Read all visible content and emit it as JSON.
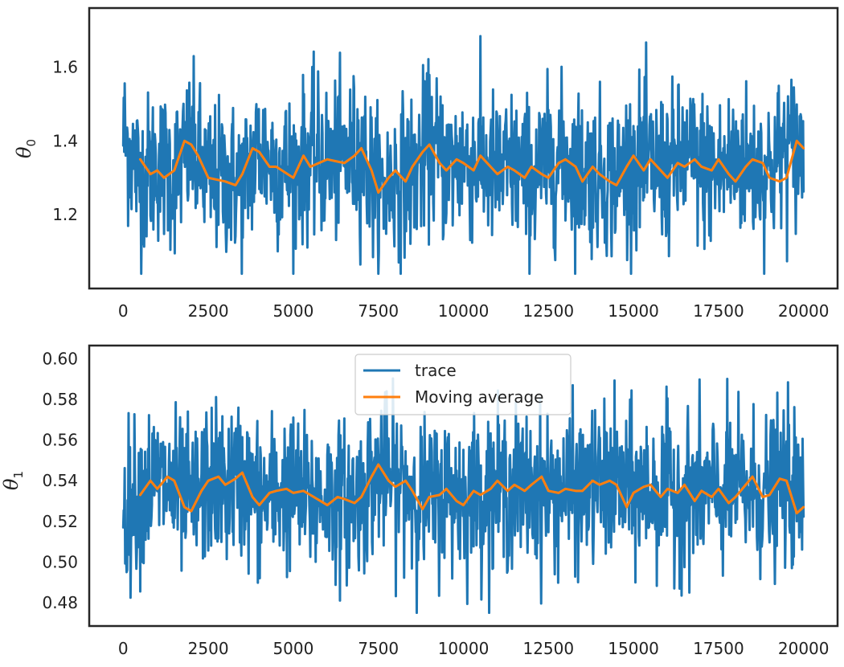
{
  "chart_data": [
    {
      "type": "line",
      "ylabel": "θ",
      "ylabel_subscript": "0",
      "xlim": [
        -1000,
        21000
      ],
      "ylim": [
        1.0,
        1.76
      ],
      "xticks": [
        0,
        2500,
        5000,
        7500,
        10000,
        12500,
        15000,
        17500,
        20000
      ],
      "xtick_labels": [
        "0",
        "2500",
        "5000",
        "7500",
        "10000",
        "12500",
        "15000",
        "17500",
        "20000"
      ],
      "yticks": [
        1.2,
        1.4,
        1.6
      ],
      "ytick_labels": [
        "1.2",
        "1.4",
        "1.6"
      ],
      "grid": false,
      "series": [
        {
          "color": "#1f77b4",
          "x": [
            0,
            500,
            1000,
            1500,
            2000,
            2500,
            3000,
            3500,
            4000,
            4500,
            5000,
            5500,
            6000,
            6500,
            7000,
            7500,
            8000,
            8500,
            9000,
            9500,
            10000,
            10500,
            11000,
            11500,
            12000,
            12500,
            13000,
            13500,
            14000,
            14500,
            15000,
            15500,
            16000,
            16500,
            17000,
            17500,
            18000,
            18500,
            19000,
            19500,
            20000
          ],
          "values": [
            1.42,
            1.3,
            1.34,
            1.31,
            1.38,
            1.29,
            1.3,
            1.28,
            1.38,
            1.33,
            1.32,
            1.36,
            1.34,
            1.35,
            1.37,
            1.26,
            1.3,
            1.31,
            1.39,
            1.33,
            1.35,
            1.34,
            1.31,
            1.33,
            1.3,
            1.34,
            1.35,
            1.32,
            1.31,
            1.3,
            1.35,
            1.33,
            1.32,
            1.35,
            1.33,
            1.31,
            1.35,
            1.33,
            1.32,
            1.38,
            1.37
          ],
          "spread": [
            0.25,
            0.25,
            0.25,
            0.25,
            0.25,
            0.25,
            0.25,
            0.25,
            0.25,
            0.25,
            0.25,
            0.25,
            0.25,
            0.25,
            0.25,
            0.25,
            0.25,
            0.25,
            0.25,
            0.25,
            0.25,
            0.25,
            0.25,
            0.25,
            0.25,
            0.25,
            0.25,
            0.25,
            0.25,
            0.25,
            0.25,
            0.25,
            0.25,
            0.25,
            0.25,
            0.25,
            0.25,
            0.25,
            0.25,
            0.25,
            0.25
          ],
          "range_min": 1.04,
          "range_max": 1.72
        },
        {
          "name": "Moving average",
          "color": "#ff7f0e",
          "x": [
            500,
            800,
            1000,
            1200,
            1500,
            1800,
            2000,
            2200,
            2500,
            3000,
            3300,
            3500,
            3800,
            4000,
            4300,
            4500,
            5000,
            5300,
            5500,
            6000,
            6500,
            6800,
            7000,
            7300,
            7500,
            7800,
            8000,
            8300,
            8500,
            8800,
            9000,
            9300,
            9500,
            9800,
            10000,
            10300,
            10500,
            10800,
            11000,
            11300,
            11500,
            11800,
            12000,
            12300,
            12500,
            12800,
            13000,
            13300,
            13500,
            13800,
            14000,
            14300,
            14500,
            14800,
            15000,
            15300,
            15500,
            15800,
            16000,
            16300,
            16500,
            16800,
            17000,
            17300,
            17500,
            17800,
            18000,
            18300,
            18500,
            18800,
            19000,
            19300,
            19500,
            19800,
            20000
          ],
          "values": [
            1.35,
            1.31,
            1.32,
            1.3,
            1.32,
            1.4,
            1.39,
            1.36,
            1.3,
            1.29,
            1.28,
            1.31,
            1.38,
            1.37,
            1.33,
            1.33,
            1.3,
            1.36,
            1.33,
            1.35,
            1.34,
            1.36,
            1.38,
            1.32,
            1.26,
            1.3,
            1.32,
            1.29,
            1.33,
            1.37,
            1.39,
            1.34,
            1.32,
            1.35,
            1.34,
            1.32,
            1.36,
            1.33,
            1.31,
            1.33,
            1.32,
            1.3,
            1.33,
            1.31,
            1.3,
            1.34,
            1.35,
            1.33,
            1.29,
            1.33,
            1.31,
            1.29,
            1.28,
            1.33,
            1.36,
            1.32,
            1.35,
            1.32,
            1.3,
            1.34,
            1.33,
            1.35,
            1.33,
            1.32,
            1.35,
            1.31,
            1.29,
            1.33,
            1.35,
            1.34,
            1.3,
            1.29,
            1.3,
            1.4,
            1.38
          ]
        }
      ]
    },
    {
      "type": "line",
      "ylabel": "θ",
      "ylabel_subscript": "1",
      "xlim": [
        -1000,
        21000
      ],
      "ylim": [
        0.4685,
        0.6065
      ],
      "xticks": [
        0,
        2500,
        5000,
        7500,
        10000,
        12500,
        15000,
        17500,
        20000
      ],
      "xtick_labels": [
        "0",
        "2500",
        "5000",
        "7500",
        "10000",
        "12500",
        "15000",
        "17500",
        "20000"
      ],
      "yticks": [
        0.48,
        0.5,
        0.52,
        0.54,
        0.56,
        0.58,
        0.6
      ],
      "ytick_labels": [
        "0.48",
        "0.50",
        "0.52",
        "0.54",
        "0.56",
        "0.58",
        "0.60"
      ],
      "grid": false,
      "legend": {
        "placement": "top-center",
        "entries": [
          {
            "label": "trace",
            "color": "#1f77b4"
          },
          {
            "label": "Moving average",
            "color": "#ff7f0e"
          }
        ]
      },
      "series": [
        {
          "name": "trace",
          "color": "#1f77b4",
          "x": [
            0,
            500,
            1000,
            1500,
            2000,
            2500,
            3000,
            3500,
            4000,
            4500,
            5000,
            5500,
            6000,
            6500,
            7000,
            7500,
            8000,
            8500,
            9000,
            9500,
            10000,
            10500,
            11000,
            11500,
            12000,
            12500,
            13000,
            13500,
            14000,
            14500,
            15000,
            15500,
            16000,
            16500,
            17000,
            17500,
            18000,
            18500,
            19000,
            19500,
            20000
          ],
          "values": [
            0.525,
            0.535,
            0.54,
            0.535,
            0.528,
            0.54,
            0.538,
            0.54,
            0.53,
            0.535,
            0.535,
            0.53,
            0.532,
            0.53,
            0.532,
            0.545,
            0.54,
            0.535,
            0.53,
            0.535,
            0.532,
            0.535,
            0.535,
            0.537,
            0.535,
            0.535,
            0.535,
            0.535,
            0.538,
            0.538,
            0.535,
            0.535,
            0.535,
            0.533,
            0.535,
            0.533,
            0.535,
            0.535,
            0.533,
            0.54,
            0.528
          ],
          "spread": [
            0.045,
            0.045,
            0.045,
            0.045,
            0.045,
            0.045,
            0.045,
            0.045,
            0.045,
            0.045,
            0.045,
            0.045,
            0.045,
            0.045,
            0.045,
            0.045,
            0.045,
            0.045,
            0.045,
            0.045,
            0.045,
            0.045,
            0.045,
            0.045,
            0.045,
            0.045,
            0.045,
            0.045,
            0.045,
            0.045,
            0.045,
            0.045,
            0.045,
            0.045,
            0.045,
            0.045,
            0.045,
            0.045,
            0.045,
            0.045,
            0.045
          ],
          "range_min": 0.475,
          "range_max": 0.6
        },
        {
          "name": "Moving average",
          "color": "#ff7f0e",
          "x": [
            500,
            800,
            1000,
            1300,
            1500,
            1800,
            2000,
            2300,
            2500,
            2800,
            3000,
            3300,
            3500,
            3800,
            4000,
            4300,
            4500,
            4800,
            5000,
            5300,
            5500,
            5800,
            6000,
            6300,
            6500,
            6800,
            7000,
            7300,
            7500,
            7800,
            8000,
            8300,
            8500,
            8800,
            9000,
            9300,
            9500,
            9800,
            10000,
            10300,
            10500,
            10800,
            11000,
            11300,
            11500,
            11800,
            12000,
            12300,
            12500,
            12800,
            13000,
            13300,
            13500,
            13800,
            14000,
            14300,
            14500,
            14800,
            15000,
            15300,
            15500,
            15800,
            16000,
            16300,
            16500,
            16800,
            17000,
            17300,
            17500,
            17800,
            18000,
            18300,
            18500,
            18800,
            19000,
            19300,
            19500,
            19800,
            20000
          ],
          "values": [
            0.533,
            0.54,
            0.536,
            0.542,
            0.54,
            0.527,
            0.525,
            0.535,
            0.54,
            0.542,
            0.538,
            0.541,
            0.544,
            0.532,
            0.528,
            0.534,
            0.535,
            0.536,
            0.534,
            0.535,
            0.533,
            0.53,
            0.528,
            0.532,
            0.531,
            0.529,
            0.532,
            0.542,
            0.548,
            0.54,
            0.537,
            0.54,
            0.535,
            0.526,
            0.532,
            0.533,
            0.536,
            0.53,
            0.528,
            0.535,
            0.533,
            0.536,
            0.54,
            0.535,
            0.538,
            0.535,
            0.538,
            0.542,
            0.535,
            0.534,
            0.536,
            0.535,
            0.535,
            0.54,
            0.538,
            0.54,
            0.538,
            0.527,
            0.534,
            0.537,
            0.538,
            0.532,
            0.536,
            0.534,
            0.538,
            0.53,
            0.535,
            0.532,
            0.536,
            0.529,
            0.532,
            0.538,
            0.542,
            0.532,
            0.533,
            0.541,
            0.54,
            0.524,
            0.527
          ]
        }
      ]
    }
  ]
}
